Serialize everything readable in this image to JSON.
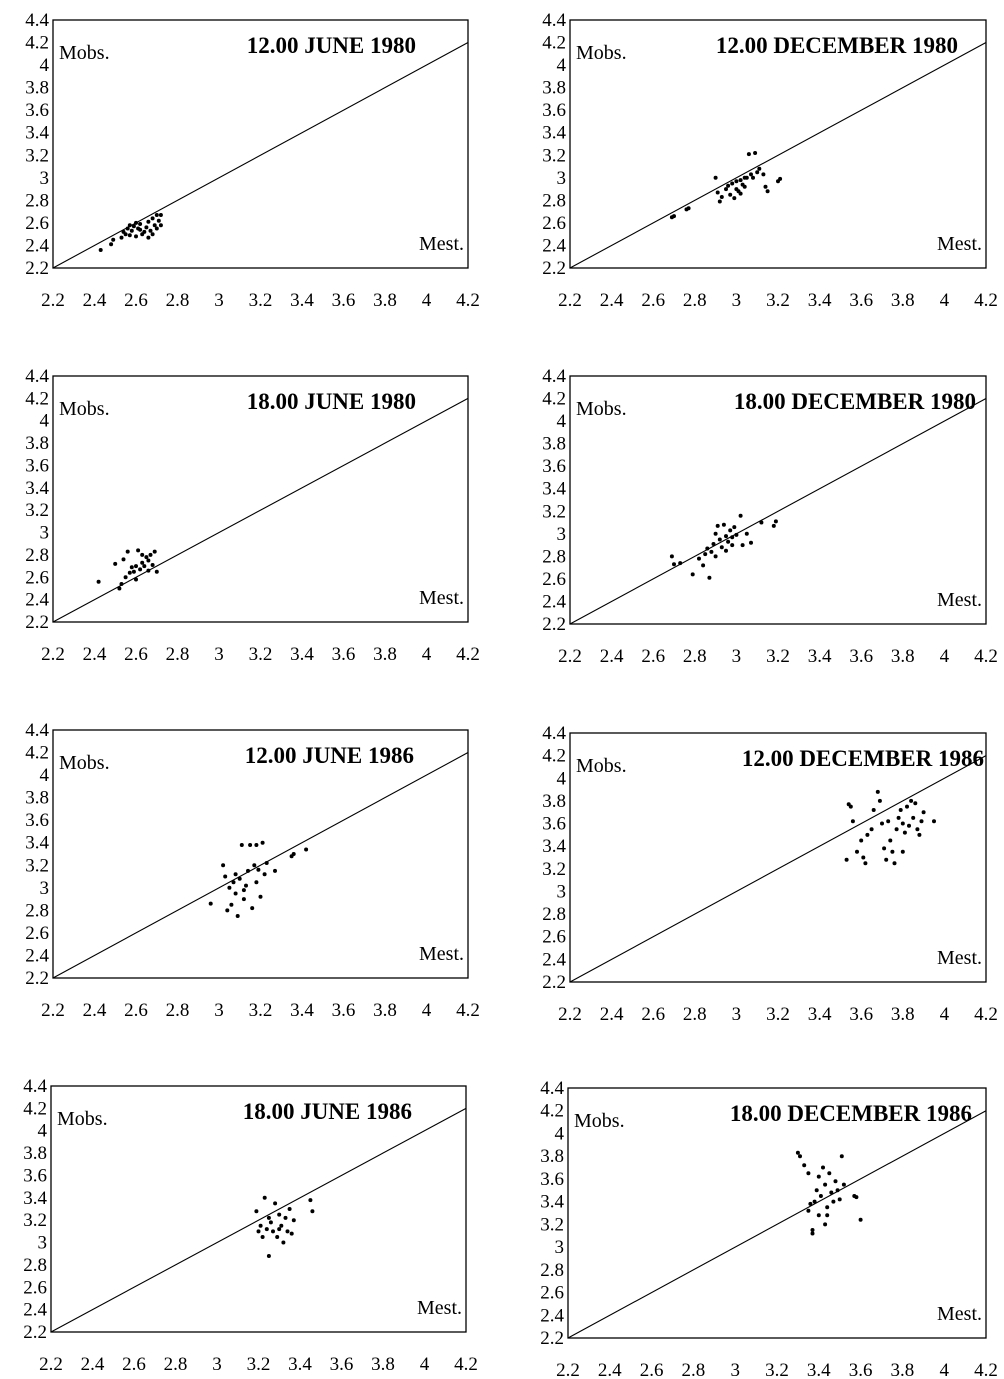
{
  "figure": {
    "y_axis_label": "Mobs.",
    "x_axis_label": "Mest.",
    "tick_labels": [
      "2.2",
      "2.4",
      "2.6",
      "2.8",
      "3",
      "3.2",
      "3.4",
      "3.6",
      "3.8",
      "4",
      "4.2",
      "4.4"
    ]
  },
  "chart_data": [
    {
      "type": "scatter",
      "title": "12.00 JUNE 1980",
      "ylabel": "Mobs.",
      "xlabel": "Mest.",
      "xlim": [
        2.2,
        4.2
      ],
      "ylim": [
        2.2,
        4.4
      ],
      "x_ticks": [
        2.2,
        2.4,
        2.6,
        2.8,
        3,
        3.2,
        3.4,
        3.6,
        3.8,
        4,
        4.2
      ],
      "y_ticks": [
        2.2,
        2.4,
        2.6,
        2.8,
        3,
        3.2,
        3.4,
        3.6,
        3.8,
        4,
        4.2,
        4.4
      ],
      "reference_line": [
        [
          2.2,
          2.2
        ],
        [
          4.2,
          4.2
        ]
      ],
      "points": [
        [
          2.43,
          2.36
        ],
        [
          2.48,
          2.41
        ],
        [
          2.49,
          2.45
        ],
        [
          2.53,
          2.47
        ],
        [
          2.54,
          2.52
        ],
        [
          2.55,
          2.5
        ],
        [
          2.56,
          2.55
        ],
        [
          2.57,
          2.49
        ],
        [
          2.58,
          2.53
        ],
        [
          2.59,
          2.57
        ],
        [
          2.6,
          2.48
        ],
        [
          2.61,
          2.55
        ],
        [
          2.62,
          2.59
        ],
        [
          2.63,
          2.5
        ],
        [
          2.64,
          2.52
        ],
        [
          2.65,
          2.56
        ],
        [
          2.66,
          2.61
        ],
        [
          2.66,
          2.47
        ],
        [
          2.67,
          2.53
        ],
        [
          2.68,
          2.64
        ],
        [
          2.69,
          2.58
        ],
        [
          2.7,
          2.67
        ],
        [
          2.7,
          2.55
        ],
        [
          2.71,
          2.62
        ],
        [
          2.72,
          2.58
        ],
        [
          2.72,
          2.67
        ],
        [
          2.6,
          2.6
        ],
        [
          2.62,
          2.54
        ],
        [
          2.57,
          2.58
        ],
        [
          2.68,
          2.5
        ]
      ]
    },
    {
      "type": "scatter",
      "title": "12.00 DECEMBER 1980",
      "ylabel": "Mobs.",
      "xlabel": "Mest.",
      "xlim": [
        2.2,
        4.2
      ],
      "ylim": [
        2.2,
        4.4
      ],
      "x_ticks": [
        2.2,
        2.4,
        2.6,
        2.8,
        3,
        3.2,
        3.4,
        3.6,
        3.8,
        4,
        4.2
      ],
      "y_ticks": [
        2.2,
        2.4,
        2.6,
        2.8,
        3,
        3.2,
        3.4,
        3.6,
        3.8,
        4,
        4.2,
        4.4
      ],
      "reference_line": [
        [
          2.2,
          2.2
        ],
        [
          4.2,
          4.2
        ]
      ],
      "points": [
        [
          2.69,
          2.65
        ],
        [
          2.7,
          2.66
        ],
        [
          2.76,
          2.72
        ],
        [
          2.77,
          2.73
        ],
        [
          2.9,
          3.0
        ],
        [
          2.91,
          2.87
        ],
        [
          2.92,
          2.79
        ],
        [
          2.93,
          2.83
        ],
        [
          2.95,
          2.9
        ],
        [
          2.96,
          2.93
        ],
        [
          2.97,
          2.85
        ],
        [
          2.98,
          2.95
        ],
        [
          2.99,
          2.82
        ],
        [
          3.0,
          2.97
        ],
        [
          3.0,
          2.9
        ],
        [
          3.01,
          2.88
        ],
        [
          3.02,
          2.98
        ],
        [
          3.03,
          2.94
        ],
        [
          3.04,
          2.92
        ],
        [
          3.05,
          3.0
        ],
        [
          3.06,
          3.21
        ],
        [
          3.07,
          3.03
        ],
        [
          3.08,
          3.0
        ],
        [
          3.09,
          3.22
        ],
        [
          3.1,
          3.05
        ],
        [
          3.11,
          3.08
        ],
        [
          3.13,
          3.03
        ],
        [
          3.14,
          2.92
        ],
        [
          3.15,
          2.88
        ],
        [
          3.2,
          2.97
        ],
        [
          3.21,
          2.99
        ],
        [
          3.02,
          2.86
        ],
        [
          3.04,
          3.0
        ]
      ]
    },
    {
      "type": "scatter",
      "title": "18.00 JUNE 1980",
      "ylabel": "Mobs.",
      "xlabel": "Mest.",
      "xlim": [
        2.2,
        4.2
      ],
      "ylim": [
        2.2,
        4.4
      ],
      "x_ticks": [
        2.2,
        2.4,
        2.6,
        2.8,
        3,
        3.2,
        3.4,
        3.6,
        3.8,
        4,
        4.2
      ],
      "y_ticks": [
        2.2,
        2.4,
        2.6,
        2.8,
        3,
        3.2,
        3.4,
        3.6,
        3.8,
        4,
        4.2,
        4.4
      ],
      "reference_line": [
        [
          2.2,
          2.2
        ],
        [
          4.2,
          4.2
        ]
      ],
      "points": [
        [
          2.42,
          2.56
        ],
        [
          2.5,
          2.72
        ],
        [
          2.52,
          2.5
        ],
        [
          2.53,
          2.54
        ],
        [
          2.54,
          2.76
        ],
        [
          2.55,
          2.6
        ],
        [
          2.56,
          2.83
        ],
        [
          2.57,
          2.64
        ],
        [
          2.58,
          2.69
        ],
        [
          2.59,
          2.65
        ],
        [
          2.6,
          2.7
        ],
        [
          2.61,
          2.84
        ],
        [
          2.62,
          2.67
        ],
        [
          2.63,
          2.73
        ],
        [
          2.64,
          2.7
        ],
        [
          2.65,
          2.78
        ],
        [
          2.66,
          2.75
        ],
        [
          2.67,
          2.8
        ],
        [
          2.68,
          2.71
        ],
        [
          2.69,
          2.83
        ],
        [
          2.7,
          2.65
        ],
        [
          2.6,
          2.58
        ],
        [
          2.63,
          2.8
        ],
        [
          2.66,
          2.66
        ]
      ]
    },
    {
      "type": "scatter",
      "title": "18.00 DECEMBER 1980",
      "ylabel": "Mobs.",
      "xlabel": "Mest.",
      "xlim": [
        2.2,
        4.2
      ],
      "ylim": [
        2.2,
        4.4
      ],
      "x_ticks": [
        2.2,
        2.4,
        2.6,
        2.8,
        3,
        3.2,
        3.4,
        3.6,
        3.8,
        4,
        4.2
      ],
      "y_ticks": [
        2.2,
        2.4,
        2.6,
        2.8,
        3,
        3.2,
        3.4,
        3.6,
        3.8,
        4,
        4.2,
        4.4
      ],
      "reference_line": [
        [
          2.2,
          2.2
        ],
        [
          4.2,
          4.2
        ]
      ],
      "points": [
        [
          2.69,
          2.8
        ],
        [
          2.7,
          2.73
        ],
        [
          2.73,
          2.74
        ],
        [
          2.79,
          2.64
        ],
        [
          2.82,
          2.78
        ],
        [
          2.84,
          2.72
        ],
        [
          2.86,
          2.87
        ],
        [
          2.87,
          2.61
        ],
        [
          2.88,
          2.84
        ],
        [
          2.89,
          2.91
        ],
        [
          2.9,
          2.8
        ],
        [
          2.91,
          3.07
        ],
        [
          2.92,
          2.95
        ],
        [
          2.93,
          2.88
        ],
        [
          2.94,
          3.08
        ],
        [
          2.95,
          2.98
        ],
        [
          2.96,
          2.93
        ],
        [
          2.97,
          3.03
        ],
        [
          2.98,
          2.9
        ],
        [
          2.99,
          3.06
        ],
        [
          3.0,
          2.99
        ],
        [
          3.02,
          3.16
        ],
        [
          3.03,
          2.9
        ],
        [
          3.05,
          3.0
        ],
        [
          3.07,
          2.92
        ],
        [
          3.12,
          3.1
        ],
        [
          3.18,
          3.07
        ],
        [
          3.19,
          3.11
        ],
        [
          2.85,
          2.82
        ],
        [
          2.9,
          3.0
        ],
        [
          2.95,
          2.85
        ],
        [
          2.98,
          2.97
        ]
      ]
    },
    {
      "type": "scatter",
      "title": "12.00 JUNE 1986",
      "ylabel": "Mobs.",
      "xlabel": "Mest.",
      "xlim": [
        2.2,
        4.2
      ],
      "ylim": [
        2.2,
        4.4
      ],
      "x_ticks": [
        2.2,
        2.4,
        2.6,
        2.8,
        3,
        3.2,
        3.4,
        3.6,
        3.8,
        4,
        4.2
      ],
      "y_ticks": [
        2.2,
        2.4,
        2.6,
        2.8,
        3,
        3.2,
        3.4,
        3.6,
        3.8,
        4,
        4.2,
        4.4
      ],
      "reference_line": [
        [
          2.2,
          2.2
        ],
        [
          4.2,
          4.2
        ]
      ],
      "points": [
        [
          2.96,
          2.86
        ],
        [
          3.02,
          3.2
        ],
        [
          3.03,
          3.1
        ],
        [
          3.04,
          2.8
        ],
        [
          3.05,
          3.0
        ],
        [
          3.06,
          2.85
        ],
        [
          3.07,
          3.05
        ],
        [
          3.08,
          2.95
        ],
        [
          3.09,
          2.75
        ],
        [
          3.1,
          3.08
        ],
        [
          3.11,
          3.38
        ],
        [
          3.12,
          2.9
        ],
        [
          3.13,
          3.02
        ],
        [
          3.14,
          3.15
        ],
        [
          3.15,
          3.38
        ],
        [
          3.16,
          2.82
        ],
        [
          3.17,
          3.2
        ],
        [
          3.18,
          3.38
        ],
        [
          3.19,
          3.16
        ],
        [
          3.2,
          2.92
        ],
        [
          3.21,
          3.4
        ],
        [
          3.22,
          3.12
        ],
        [
          3.23,
          3.22
        ],
        [
          3.27,
          3.15
        ],
        [
          3.35,
          3.28
        ],
        [
          3.36,
          3.3
        ],
        [
          3.42,
          3.34
        ],
        [
          3.08,
          3.12
        ],
        [
          3.12,
          2.98
        ],
        [
          3.18,
          3.05
        ]
      ]
    },
    {
      "type": "scatter",
      "title": "12.00 DECEMBER 1986",
      "ylabel": "Mobs.",
      "xlabel": "Mest.",
      "xlim": [
        2.2,
        4.2
      ],
      "ylim": [
        2.2,
        4.4
      ],
      "x_ticks": [
        2.2,
        2.4,
        2.6,
        2.8,
        3,
        3.2,
        3.4,
        3.6,
        3.8,
        4,
        4.2
      ],
      "y_ticks": [
        2.2,
        2.4,
        2.6,
        2.8,
        3,
        3.2,
        3.4,
        3.6,
        3.8,
        4,
        4.2,
        4.4
      ],
      "reference_line": [
        [
          2.2,
          2.2
        ],
        [
          4.2,
          4.2
        ]
      ],
      "points": [
        [
          3.53,
          3.28
        ],
        [
          3.54,
          3.77
        ],
        [
          3.55,
          3.75
        ],
        [
          3.56,
          3.62
        ],
        [
          3.58,
          3.35
        ],
        [
          3.6,
          3.45
        ],
        [
          3.61,
          3.3
        ],
        [
          3.62,
          3.25
        ],
        [
          3.63,
          3.5
        ],
        [
          3.65,
          3.55
        ],
        [
          3.66,
          3.72
        ],
        [
          3.68,
          3.88
        ],
        [
          3.69,
          3.8
        ],
        [
          3.7,
          3.6
        ],
        [
          3.71,
          3.38
        ],
        [
          3.72,
          3.28
        ],
        [
          3.73,
          3.62
        ],
        [
          3.74,
          3.45
        ],
        [
          3.75,
          3.35
        ],
        [
          3.76,
          3.25
        ],
        [
          3.77,
          3.55
        ],
        [
          3.78,
          3.65
        ],
        [
          3.79,
          3.72
        ],
        [
          3.8,
          3.6
        ],
        [
          3.81,
          3.52
        ],
        [
          3.82,
          3.75
        ],
        [
          3.83,
          3.58
        ],
        [
          3.84,
          3.8
        ],
        [
          3.85,
          3.65
        ],
        [
          3.86,
          3.78
        ],
        [
          3.87,
          3.55
        ],
        [
          3.88,
          3.5
        ],
        [
          3.89,
          3.62
        ],
        [
          3.9,
          3.7
        ],
        [
          3.95,
          3.62
        ],
        [
          3.8,
          3.35
        ]
      ]
    },
    {
      "type": "scatter",
      "title": "18.00 JUNE 1986",
      "ylabel": "Mobs.",
      "xlabel": "Mest.",
      "xlim": [
        2.2,
        4.2
      ],
      "ylim": [
        2.2,
        4.4
      ],
      "x_ticks": [
        2.2,
        2.4,
        2.6,
        2.8,
        3,
        3.2,
        3.4,
        3.6,
        3.8,
        4,
        4.2
      ],
      "y_ticks": [
        2.2,
        2.4,
        2.6,
        2.8,
        3,
        3.2,
        3.4,
        3.6,
        3.8,
        4,
        4.2,
        4.4
      ],
      "reference_line": [
        [
          2.2,
          2.2
        ],
        [
          4.2,
          4.2
        ]
      ],
      "points": [
        [
          3.19,
          3.28
        ],
        [
          3.2,
          3.1
        ],
        [
          3.21,
          3.15
        ],
        [
          3.22,
          3.05
        ],
        [
          3.23,
          3.4
        ],
        [
          3.24,
          3.12
        ],
        [
          3.25,
          2.88
        ],
        [
          3.26,
          3.18
        ],
        [
          3.27,
          3.1
        ],
        [
          3.28,
          3.35
        ],
        [
          3.29,
          3.05
        ],
        [
          3.3,
          3.25
        ],
        [
          3.31,
          3.15
        ],
        [
          3.32,
          3.0
        ],
        [
          3.33,
          3.22
        ],
        [
          3.34,
          3.1
        ],
        [
          3.35,
          3.3
        ],
        [
          3.36,
          3.08
        ],
        [
          3.37,
          3.2
        ],
        [
          3.45,
          3.38
        ],
        [
          3.46,
          3.28
        ],
        [
          3.3,
          3.12
        ],
        [
          3.25,
          3.22
        ]
      ]
    },
    {
      "type": "scatter",
      "title": "18.00 DECEMBER 1986",
      "ylabel": "Mobs.",
      "xlabel": "Mest.",
      "xlim": [
        2.2,
        4.2
      ],
      "ylim": [
        2.2,
        4.4
      ],
      "x_ticks": [
        2.2,
        2.4,
        2.6,
        2.8,
        3,
        3.2,
        3.4,
        3.6,
        3.8,
        4,
        4.2
      ],
      "y_ticks": [
        2.2,
        2.4,
        2.6,
        2.8,
        3,
        3.2,
        3.4,
        3.6,
        3.8,
        4,
        4.2,
        4.4
      ],
      "reference_line": [
        [
          2.2,
          2.2
        ],
        [
          4.2,
          4.2
        ]
      ],
      "points": [
        [
          3.3,
          3.83
        ],
        [
          3.31,
          3.8
        ],
        [
          3.33,
          3.72
        ],
        [
          3.35,
          3.65
        ],
        [
          3.35,
          3.32
        ],
        [
          3.37,
          3.15
        ],
        [
          3.37,
          3.12
        ],
        [
          3.38,
          3.4
        ],
        [
          3.39,
          3.5
        ],
        [
          3.4,
          3.62
        ],
        [
          3.4,
          3.28
        ],
        [
          3.41,
          3.45
        ],
        [
          3.42,
          3.7
        ],
        [
          3.43,
          3.55
        ],
        [
          3.43,
          3.2
        ],
        [
          3.44,
          3.35
        ],
        [
          3.45,
          3.65
        ],
        [
          3.46,
          3.48
        ],
        [
          3.47,
          3.4
        ],
        [
          3.48,
          3.58
        ],
        [
          3.49,
          3.5
        ],
        [
          3.5,
          3.42
        ],
        [
          3.51,
          3.8
        ],
        [
          3.52,
          3.55
        ],
        [
          3.57,
          3.45
        ],
        [
          3.58,
          3.44
        ],
        [
          3.6,
          3.24
        ],
        [
          3.36,
          3.38
        ],
        [
          3.44,
          3.28
        ]
      ]
    }
  ]
}
